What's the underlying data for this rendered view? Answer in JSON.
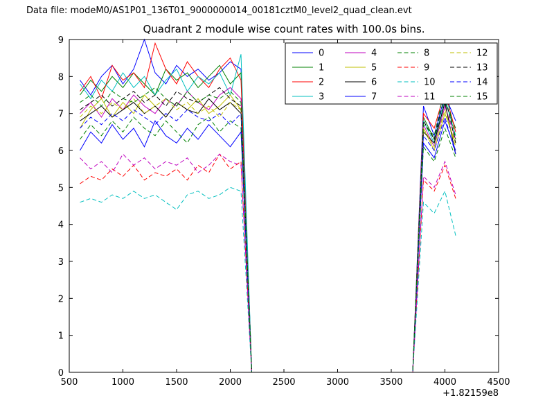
{
  "chart_data": {
    "type": "line",
    "top_label": "Data file: modeM0/AS1P01_136T01_9000000014_00181cztM0_level2_quad_clean.evt",
    "title": "Quadrant 2 module wise count rates with 100.0s bins.",
    "x_offset_label": "+1.82159e8",
    "xlabel": "",
    "ylabel": "",
    "xlim": [
      500,
      4500
    ],
    "ylim": [
      0,
      9
    ],
    "x_ticks": [
      500,
      1000,
      1500,
      2000,
      2500,
      3000,
      3500,
      4000,
      4500
    ],
    "x_tick_labels": [
      "500",
      "1000",
      "1500",
      "2000",
      "2500",
      "3000",
      "3500",
      "4000",
      "4500"
    ],
    "y_ticks": [
      0,
      1,
      2,
      3,
      4,
      5,
      6,
      7,
      8,
      9
    ],
    "y_tick_labels": [
      "0",
      "1",
      "2",
      "3",
      "4",
      "5",
      "6",
      "7",
      "8",
      "9"
    ],
    "grid": false,
    "legend_position": "upper center-right, 4 columns",
    "x": [
      600,
      700,
      800,
      900,
      1000,
      1100,
      1200,
      1300,
      1400,
      1500,
      1600,
      1700,
      1800,
      1900,
      2000,
      2100,
      2200,
      2300,
      2400,
      2500,
      2600,
      2700,
      2800,
      2900,
      3000,
      3100,
      3200,
      3300,
      3400,
      3500,
      3600,
      3700,
      3800,
      3900,
      4000,
      4100
    ],
    "series": [
      {
        "name": "0",
        "color": "#0000ff",
        "dash": false,
        "values": [
          7.9,
          7.5,
          8.0,
          8.3,
          7.8,
          8.2,
          9.0,
          8.1,
          7.8,
          8.3,
          8.0,
          8.2,
          7.9,
          8.1,
          8.4,
          8.2,
          0,
          0,
          0,
          0,
          0,
          0,
          0,
          0,
          0,
          0,
          0,
          0,
          0,
          0,
          0,
          0,
          7.2,
          6.4,
          7.5,
          6.8
        ]
      },
      {
        "name": "1",
        "color": "#008000",
        "dash": false,
        "values": [
          7.5,
          7.9,
          7.6,
          8.0,
          7.7,
          8.1,
          7.8,
          7.5,
          8.2,
          7.9,
          8.1,
          7.7,
          8.0,
          8.3,
          7.8,
          8.1,
          0,
          0,
          0,
          0,
          0,
          0,
          0,
          0,
          0,
          0,
          0,
          0,
          0,
          0,
          0,
          0,
          6.9,
          6.3,
          7.3,
          6.6
        ]
      },
      {
        "name": "2",
        "color": "#ff0000",
        "dash": false,
        "values": [
          7.6,
          8.0,
          7.4,
          8.3,
          7.9,
          8.1,
          7.7,
          8.9,
          8.2,
          7.8,
          8.4,
          8.0,
          7.7,
          8.2,
          8.5,
          7.9,
          0,
          0,
          0,
          0,
          0,
          0,
          0,
          0,
          0,
          0,
          0,
          0,
          0,
          0,
          0,
          0,
          7.0,
          6.6,
          7.6,
          6.5
        ]
      },
      {
        "name": "3",
        "color": "#00bfbf",
        "dash": false,
        "values": [
          7.8,
          7.4,
          7.9,
          7.6,
          8.1,
          7.7,
          8.0,
          7.5,
          7.9,
          8.2,
          7.6,
          8.0,
          7.8,
          8.1,
          7.5,
          8.6,
          0,
          0,
          0,
          0,
          0,
          0,
          0,
          0,
          0,
          0,
          0,
          0,
          0,
          0,
          0,
          0,
          6.8,
          6.2,
          7.4,
          6.4
        ]
      },
      {
        "name": "4",
        "color": "#bf00bf",
        "dash": false,
        "values": [
          7.0,
          7.3,
          6.9,
          7.4,
          7.1,
          7.5,
          7.2,
          7.0,
          7.4,
          7.2,
          7.6,
          7.3,
          7.1,
          7.5,
          7.7,
          7.4,
          0,
          0,
          0,
          0,
          0,
          0,
          0,
          0,
          0,
          0,
          0,
          0,
          0,
          0,
          0,
          0,
          6.7,
          6.1,
          7.2,
          6.3
        ]
      },
      {
        "name": "5",
        "color": "#bfbf00",
        "dash": false,
        "values": [
          6.6,
          7.1,
          7.4,
          6.9,
          7.3,
          7.0,
          7.5,
          7.2,
          6.9,
          7.3,
          7.1,
          7.4,
          7.0,
          7.2,
          7.5,
          7.1,
          0,
          0,
          0,
          0,
          0,
          0,
          0,
          0,
          0,
          0,
          0,
          0,
          0,
          0,
          0,
          0,
          6.6,
          6.0,
          7.0,
          6.2
        ]
      },
      {
        "name": "6",
        "color": "#000000",
        "dash": false,
        "values": [
          6.8,
          7.0,
          7.2,
          6.9,
          7.1,
          7.3,
          7.0,
          7.2,
          6.9,
          7.3,
          7.1,
          7.0,
          7.4,
          7.1,
          7.3,
          7.0,
          0,
          0,
          0,
          0,
          0,
          0,
          0,
          0,
          0,
          0,
          0,
          0,
          0,
          0,
          0,
          0,
          6.5,
          6.2,
          7.3,
          5.9
        ]
      },
      {
        "name": "7",
        "color": "#0000ff",
        "dash": false,
        "values": [
          6.0,
          6.5,
          6.2,
          6.7,
          6.3,
          6.6,
          6.1,
          6.8,
          6.4,
          6.2,
          6.6,
          6.3,
          6.7,
          6.4,
          6.1,
          6.5,
          0,
          0,
          0,
          0,
          0,
          0,
          0,
          0,
          0,
          0,
          0,
          0,
          0,
          0,
          0,
          0,
          6.2,
          5.8,
          6.8,
          6.0
        ]
      },
      {
        "name": "8",
        "color": "#008000",
        "dash": true,
        "values": [
          6.3,
          6.7,
          6.4,
          6.8,
          6.5,
          6.9,
          6.6,
          6.4,
          6.8,
          6.5,
          6.2,
          6.7,
          6.9,
          6.5,
          6.8,
          6.6,
          0,
          0,
          0,
          0,
          0,
          0,
          0,
          0,
          0,
          0,
          0,
          0,
          0,
          0,
          0,
          0,
          6.1,
          5.7,
          6.6,
          5.8
        ]
      },
      {
        "name": "9",
        "color": "#ff0000",
        "dash": true,
        "values": [
          5.1,
          5.3,
          5.2,
          5.5,
          5.3,
          5.6,
          5.2,
          5.4,
          5.3,
          5.5,
          5.2,
          5.6,
          5.4,
          5.9,
          5.5,
          5.7,
          0,
          0,
          0,
          0,
          0,
          0,
          0,
          0,
          0,
          0,
          0,
          0,
          0,
          0,
          0,
          0,
          5.2,
          4.9,
          5.6,
          4.7
        ]
      },
      {
        "name": "10",
        "color": "#00bfbf",
        "dash": true,
        "values": [
          4.6,
          4.7,
          4.6,
          4.8,
          4.7,
          4.9,
          4.7,
          4.8,
          4.6,
          4.4,
          4.8,
          4.9,
          4.7,
          4.8,
          5.0,
          4.9,
          0,
          0,
          0,
          0,
          0,
          0,
          0,
          0,
          0,
          0,
          0,
          0,
          0,
          0,
          0,
          0,
          4.6,
          4.3,
          4.9,
          3.7
        ]
      },
      {
        "name": "11",
        "color": "#bf00bf",
        "dash": true,
        "values": [
          5.8,
          5.5,
          5.7,
          5.4,
          5.9,
          5.6,
          5.8,
          5.5,
          5.7,
          5.6,
          5.8,
          5.4,
          5.6,
          5.9,
          5.7,
          5.6,
          0,
          0,
          0,
          0,
          0,
          0,
          0,
          0,
          0,
          0,
          0,
          0,
          0,
          0,
          0,
          0,
          5.3,
          5.0,
          5.7,
          4.8
        ]
      },
      {
        "name": "12",
        "color": "#bfbf00",
        "dash": true,
        "values": [
          6.9,
          7.2,
          7.0,
          7.3,
          7.1,
          7.4,
          7.0,
          7.2,
          7.4,
          7.1,
          7.3,
          7.0,
          7.2,
          6.9,
          7.3,
          7.1,
          0,
          0,
          0,
          0,
          0,
          0,
          0,
          0,
          0,
          0,
          0,
          0,
          0,
          0,
          0,
          0,
          6.6,
          6.1,
          7.1,
          6.1
        ]
      },
      {
        "name": "13",
        "color": "#000000",
        "dash": true,
        "values": [
          7.1,
          7.3,
          7.5,
          7.2,
          7.4,
          7.6,
          7.3,
          7.5,
          7.2,
          7.6,
          7.4,
          7.3,
          7.5,
          7.7,
          7.4,
          7.2,
          0,
          0,
          0,
          0,
          0,
          0,
          0,
          0,
          0,
          0,
          0,
          0,
          0,
          0,
          0,
          0,
          6.8,
          6.3,
          7.5,
          6.2
        ]
      },
      {
        "name": "14",
        "color": "#0000ff",
        "dash": true,
        "values": [
          6.6,
          6.9,
          6.7,
          7.0,
          6.8,
          7.1,
          6.9,
          6.7,
          7.0,
          6.8,
          7.1,
          6.9,
          6.8,
          7.0,
          6.7,
          7.0,
          0,
          0,
          0,
          0,
          0,
          0,
          0,
          0,
          0,
          0,
          0,
          0,
          0,
          0,
          0,
          0,
          6.4,
          6.0,
          6.9,
          5.9
        ]
      },
      {
        "name": "15",
        "color": "#008000",
        "dash": true,
        "values": [
          7.3,
          7.5,
          7.2,
          7.6,
          7.4,
          7.3,
          7.5,
          7.7,
          7.4,
          7.2,
          7.6,
          7.3,
          7.5,
          7.4,
          7.6,
          7.3,
          0,
          0,
          0,
          0,
          0,
          0,
          0,
          0,
          0,
          0,
          0,
          0,
          0,
          0,
          0,
          0,
          6.7,
          6.4,
          7.7,
          6.3
        ]
      }
    ],
    "axis_color": "#000000",
    "background_color": "#ffffff"
  }
}
